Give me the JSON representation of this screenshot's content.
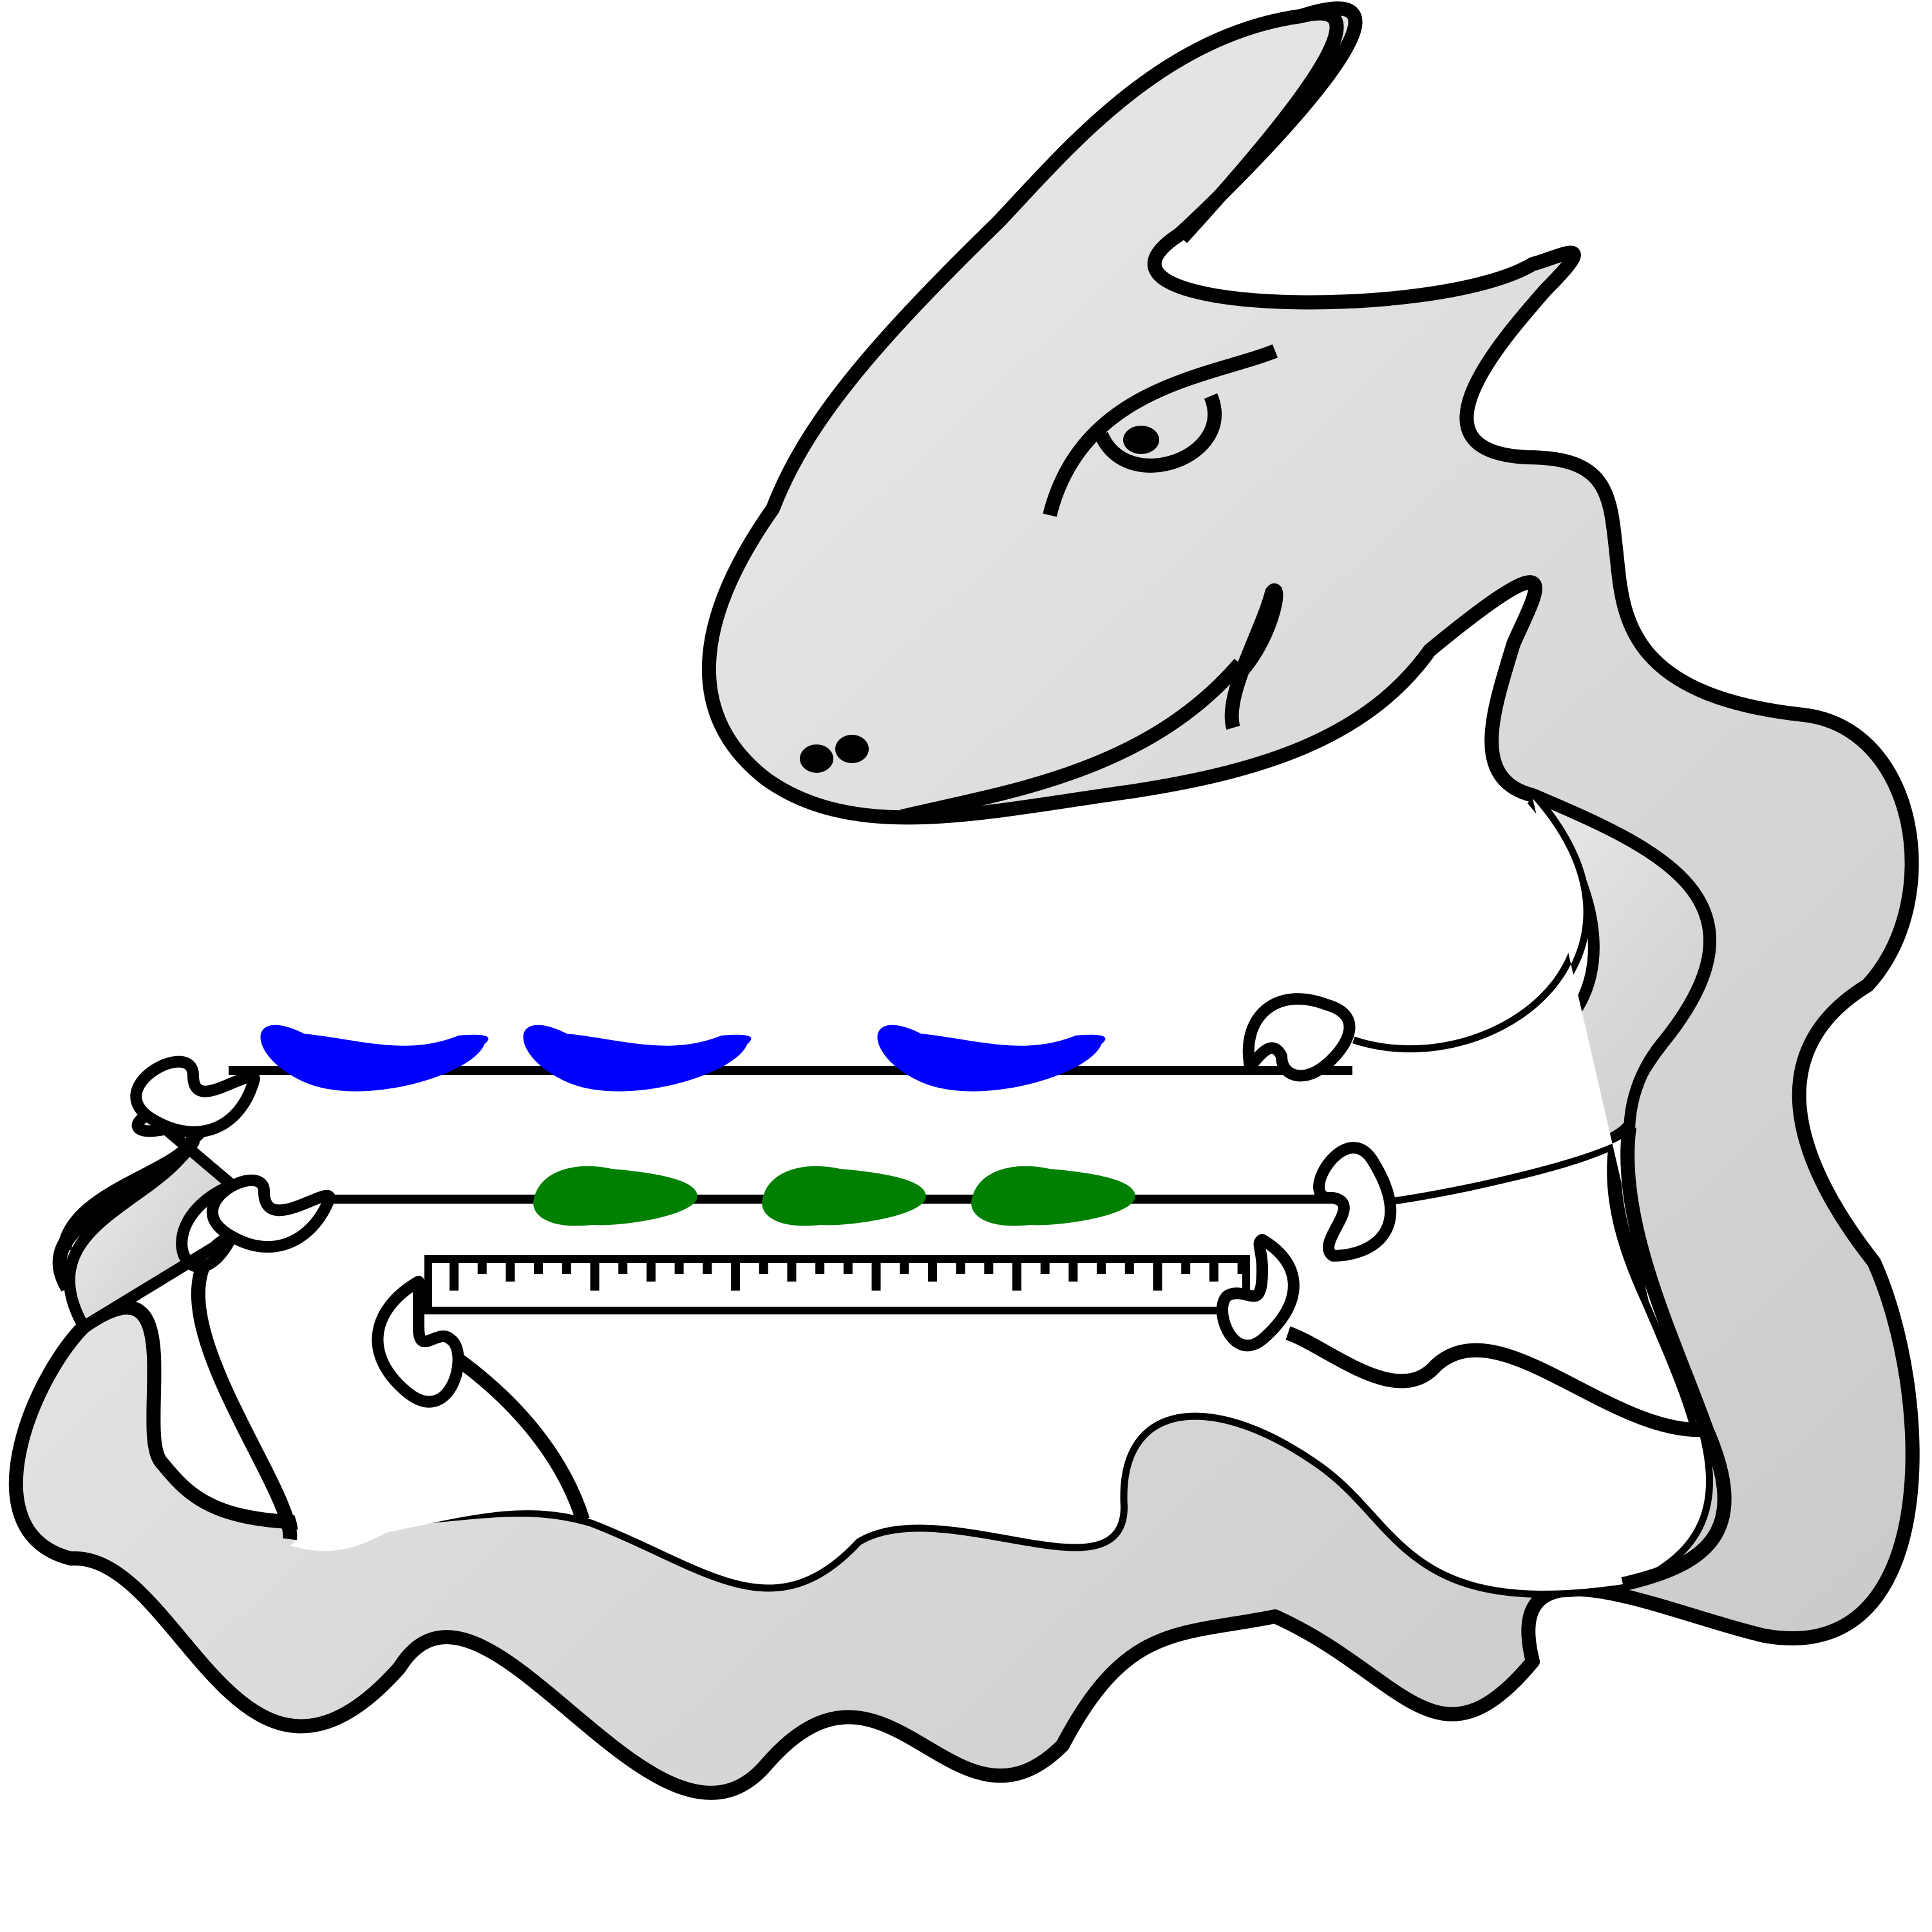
{
  "illustration": {
    "subject": "dragon-with-skewers",
    "colors": {
      "outline": "#000000",
      "body_light": "#f2f2f2",
      "body_dark": "#c8c8c8",
      "background": "#ffffff",
      "food_blue": "#0000ff",
      "food_green": "#008000"
    },
    "skewers": [
      {
        "name": "skewer-blue",
        "color": "#0000ff",
        "item_count": 3
      },
      {
        "name": "skewer-green",
        "color": "#008000",
        "item_count": 3
      },
      {
        "name": "skewer-ruler",
        "color": "#ffffff",
        "item_count": 0
      }
    ]
  }
}
